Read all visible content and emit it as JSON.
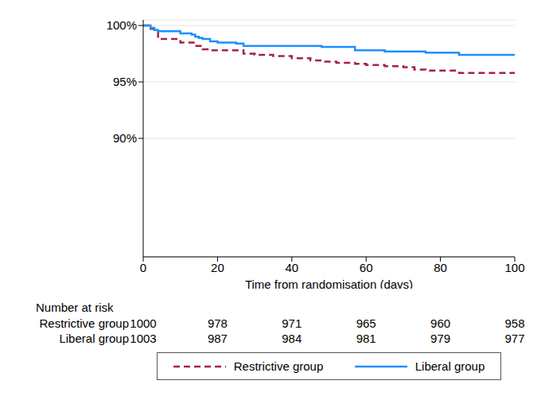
{
  "chart_data": {
    "type": "step",
    "x_label": "Time from randomisation (days)",
    "x": [
      0,
      2,
      3,
      4,
      6,
      10,
      13,
      14,
      15,
      16,
      18,
      20,
      25,
      27,
      30,
      35,
      40,
      45,
      48,
      52,
      57,
      60,
      65,
      70,
      73,
      76,
      80,
      85,
      90,
      100
    ],
    "series": [
      {
        "name": "Restrictive group",
        "color": "#a3224f",
        "line_style": "dashed",
        "values": [
          100,
          99.7,
          99.4,
          98.8,
          98.8,
          98.5,
          98.5,
          98.2,
          98.2,
          97.9,
          97.8,
          97.8,
          97.8,
          97.5,
          97.4,
          97.3,
          97.1,
          96.9,
          96.8,
          96.7,
          96.6,
          96.5,
          96.4,
          96.3,
          96.1,
          96.0,
          96.0,
          95.8,
          95.8,
          95.8
        ]
      },
      {
        "name": "Liberal group",
        "color": "#1e8fff",
        "line_style": "solid",
        "values": [
          100,
          99.8,
          99.6,
          99.5,
          99.5,
          99.3,
          99.2,
          99.0,
          98.9,
          98.8,
          98.6,
          98.5,
          98.4,
          98.2,
          98.2,
          98.2,
          98.2,
          98.2,
          98.1,
          98.1,
          97.8,
          97.8,
          97.7,
          97.7,
          97.7,
          97.6,
          97.6,
          97.4,
          97.4,
          97.4
        ]
      }
    ],
    "xlim": [
      0,
      100
    ],
    "xticks": [
      0,
      20,
      40,
      60,
      80,
      100
    ],
    "ylim": [
      79.5,
      100.5
    ],
    "yticks": [
      {
        "value": 90,
        "label": "90%"
      },
      {
        "value": 95,
        "label": "95%"
      },
      {
        "value": 100,
        "label": "100%"
      }
    ],
    "grid": true,
    "legend": "bottom",
    "number_at_risk": {
      "title": "Number at risk",
      "times": [
        0,
        20,
        40,
        60,
        80,
        100
      ],
      "rows": [
        {
          "name": "Restrictive group",
          "values": [
            1000,
            978,
            971,
            965,
            960,
            958
          ]
        },
        {
          "name": "Liberal group",
          "values": [
            1003,
            987,
            984,
            981,
            979,
            977
          ]
        }
      ]
    }
  }
}
